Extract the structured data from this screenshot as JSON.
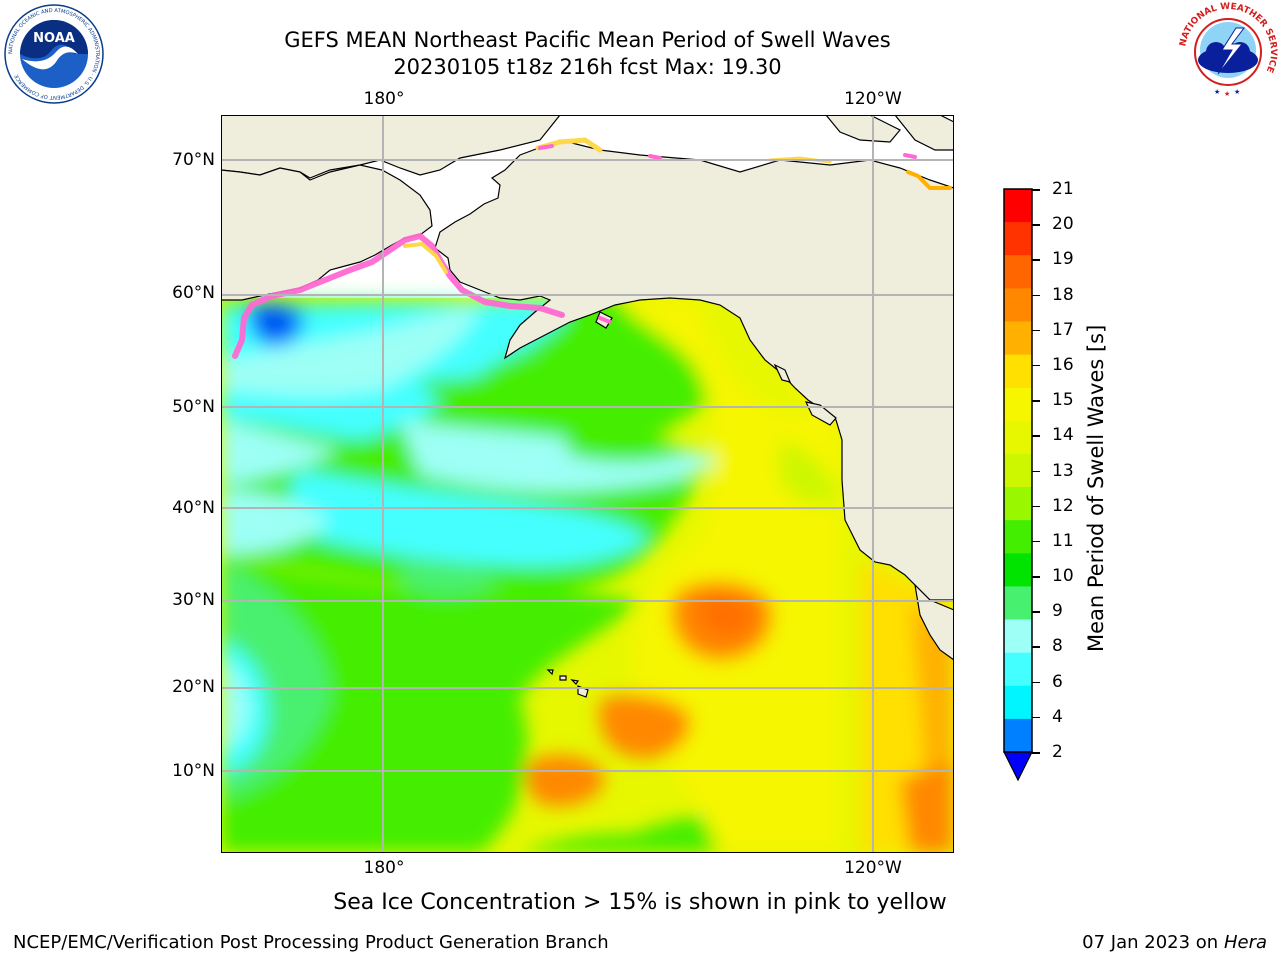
{
  "title_line1": "GEFS MEAN Northeast Pacific Mean Period of Swell Waves",
  "title_line2": "20230105 t18z 216h fcst   Max: 19.30",
  "map": {
    "lon_labels_top": [
      "180°",
      "120°W"
    ],
    "lon_labels_bottom": [
      "180°",
      "120°W"
    ],
    "lat_labels": [
      "70°N",
      "60°N",
      "50°N",
      "40°N",
      "30°N",
      "20°N",
      "10°N"
    ],
    "colors": {
      "land": "#efeddc",
      "ice_pink": "#ff69d2",
      "ice_yellow": "#ffd84a",
      "grid": "#b4b4b4"
    }
  },
  "colorbar": {
    "title": "Mean Period of Swell Waves [s]",
    "ticks": [
      "21",
      "20",
      "19",
      "18",
      "17",
      "16",
      "15",
      "14",
      "13",
      "12",
      "11",
      "10",
      "9",
      "8",
      "6",
      "4",
      "2"
    ],
    "colors": [
      "#ff0000",
      "#ff3300",
      "#ff6600",
      "#ff8800",
      "#ffb000",
      "#ffe000",
      "#f6f600",
      "#e6f700",
      "#ccf700",
      "#99f700",
      "#44ee00",
      "#00e400",
      "#48f070",
      "#9dfff6",
      "#44ffff",
      "#00f5ff",
      "#0080ff"
    ],
    "under_color": "#0000ff"
  },
  "ice_note": "Sea Ice Concentration > 15% is shown in pink to yellow",
  "footer_left": "NCEP/EMC/Verification Post Processing Product Generation Branch",
  "footer_right_date": "07 Jan 2023 on ",
  "footer_right_machine": "Hera",
  "logos": {
    "noaa_text": "NOAA",
    "noaa_ring_text": "NATIONAL OCEANIC AND ATMOSPHERIC ADMINISTRATION · U.S. DEPARTMENT OF COMMERCE",
    "nws_ring_text": "NATIONAL WEATHER SERVICE"
  }
}
